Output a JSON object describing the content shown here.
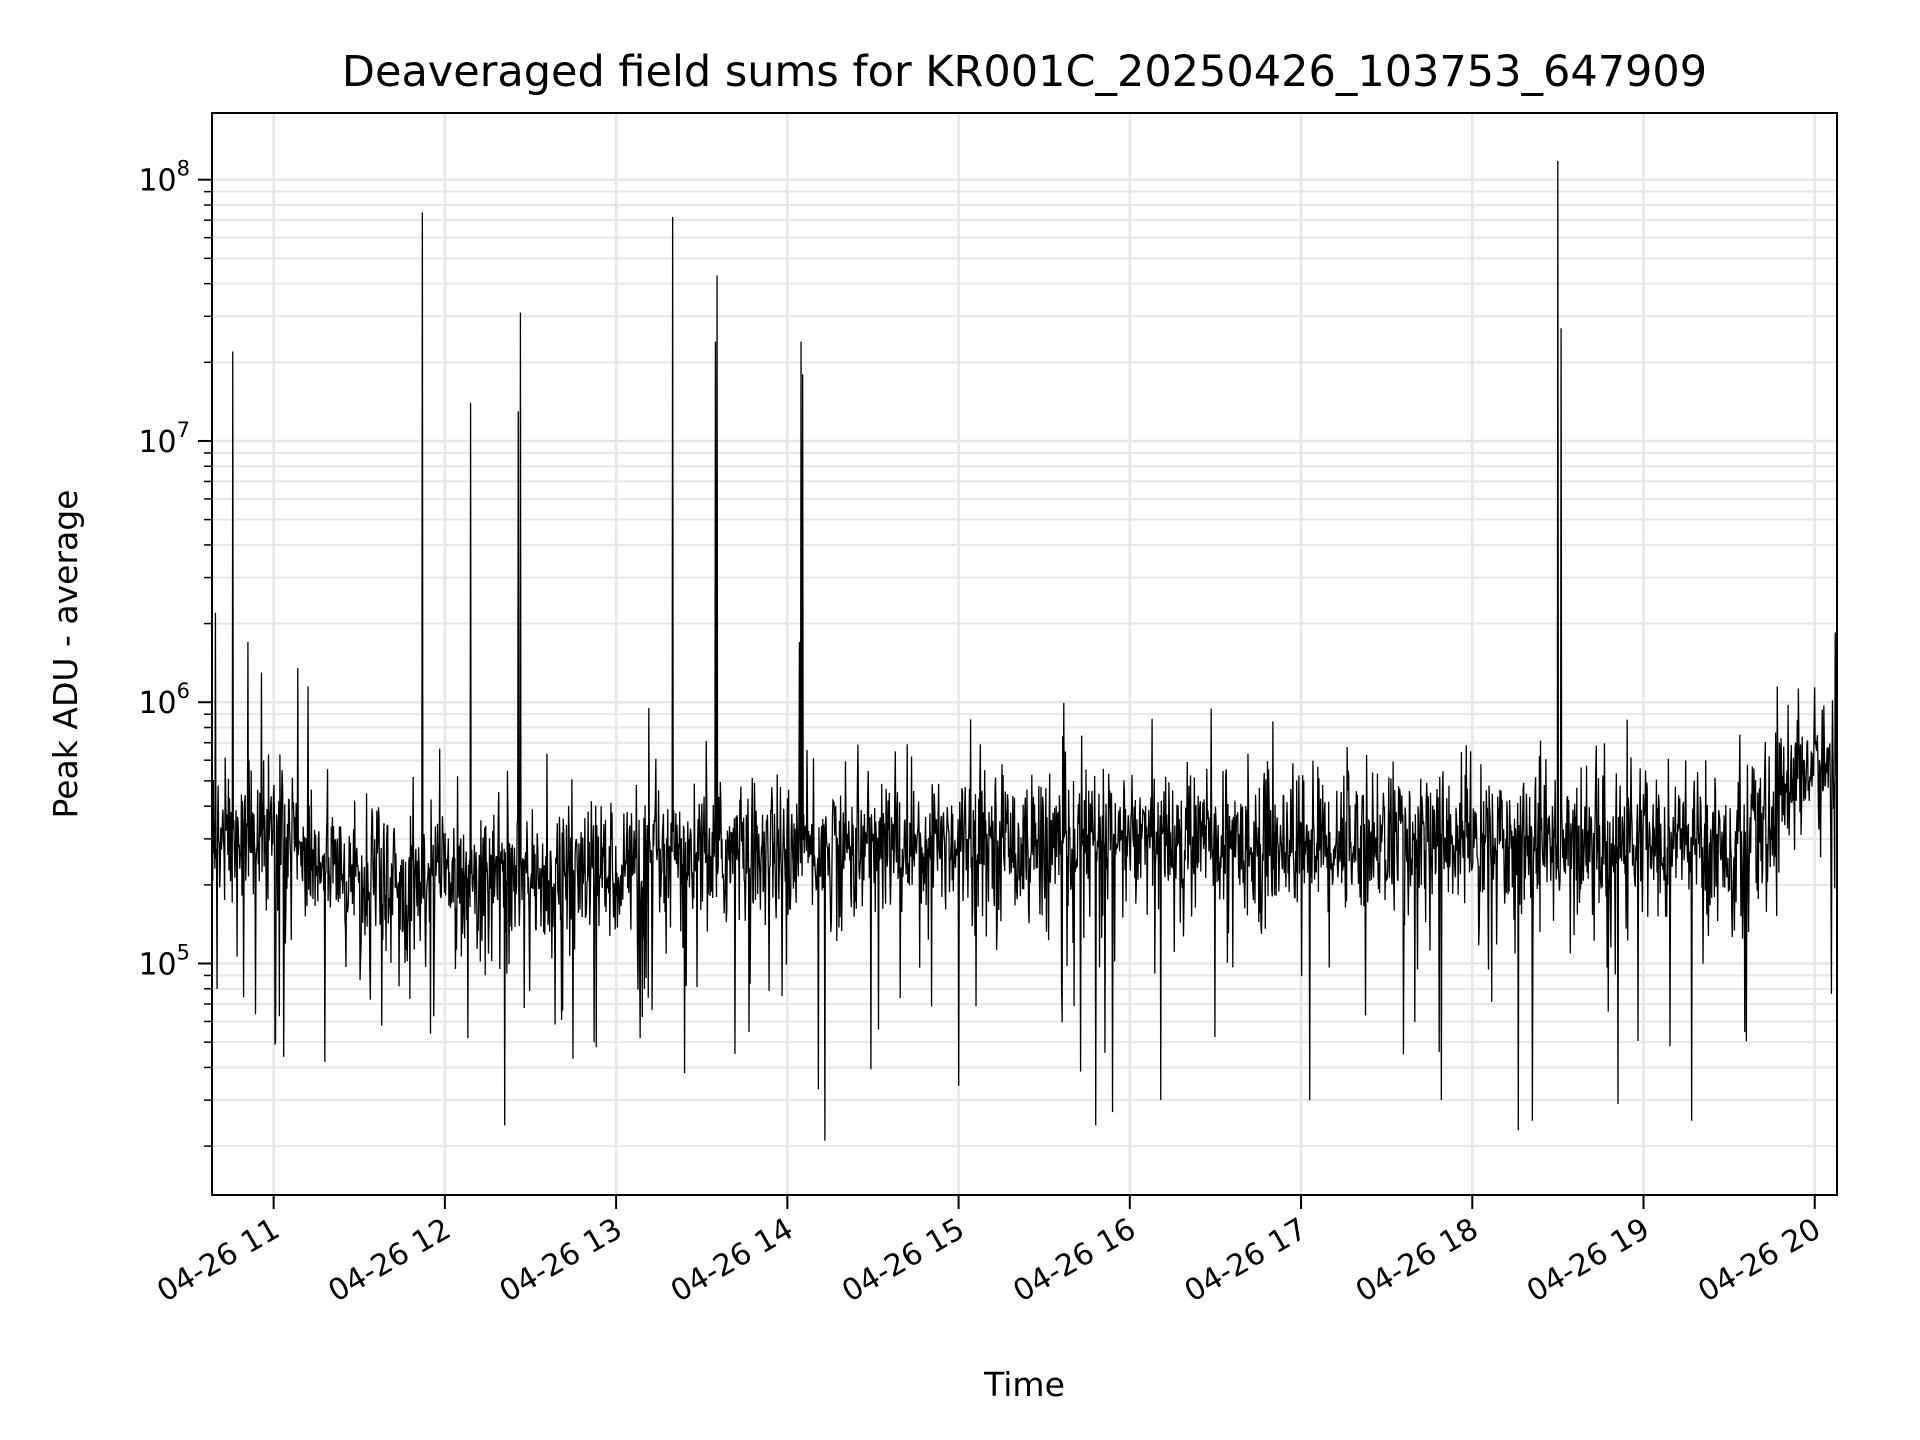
{
  "chart_data": {
    "type": "line",
    "title": "Deaveraged field sums for KR001C_20250426_103753_647909",
    "xlabel": "Time",
    "ylabel": "Peak ADU - average",
    "yscale": "log",
    "ylim": [
      13000,
      180000000
    ],
    "xlim_hours": [
      10.64,
      20.13
    ],
    "grid": true,
    "line_color": "#000000",
    "grid_color": "#e6e6e6",
    "x_ticks": [
      {
        "hour": 11,
        "label": "04-26 11"
      },
      {
        "hour": 12,
        "label": "04-26 12"
      },
      {
        "hour": 13,
        "label": "04-26 13"
      },
      {
        "hour": 14,
        "label": "04-26 14"
      },
      {
        "hour": 15,
        "label": "04-26 15"
      },
      {
        "hour": 16,
        "label": "04-26 16"
      },
      {
        "hour": 17,
        "label": "04-26 17"
      },
      {
        "hour": 18,
        "label": "04-26 18"
      },
      {
        "hour": 19,
        "label": "04-26 19"
      },
      {
        "hour": 20,
        "label": "04-26 20"
      }
    ],
    "y_ticks": [
      {
        "value": 100000,
        "base": "10",
        "exp": "5"
      },
      {
        "value": 1000000,
        "base": "10",
        "exp": "6"
      },
      {
        "value": 10000000,
        "base": "10",
        "exp": "7"
      },
      {
        "value": 100000000,
        "base": "10",
        "exp": "8"
      }
    ],
    "baseline": [
      [
        10.64,
        300000
      ],
      [
        11.0,
        320000
      ],
      [
        11.5,
        200000
      ],
      [
        12.0,
        230000
      ],
      [
        12.5,
        210000
      ],
      [
        13.0,
        230000
      ],
      [
        13.5,
        260000
      ],
      [
        14.0,
        270000
      ],
      [
        14.5,
        280000
      ],
      [
        15.0,
        300000
      ],
      [
        15.5,
        290000
      ],
      [
        16.0,
        300000
      ],
      [
        16.5,
        300000
      ],
      [
        17.0,
        290000
      ],
      [
        17.5,
        300000
      ],
      [
        18.0,
        300000
      ],
      [
        18.5,
        290000
      ],
      [
        19.0,
        300000
      ],
      [
        19.5,
        280000
      ],
      [
        19.75,
        320000
      ],
      [
        19.85,
        550000
      ],
      [
        20.13,
        560000
      ]
    ],
    "spikes": [
      {
        "hour": 10.66,
        "value": 2200000
      },
      {
        "hour": 10.76,
        "value": 22000000
      },
      {
        "hour": 10.85,
        "value": 1700000
      },
      {
        "hour": 10.93,
        "value": 1300000
      },
      {
        "hour": 11.14,
        "value": 1350000
      },
      {
        "hour": 11.2,
        "value": 1150000
      },
      {
        "hour": 11.87,
        "value": 75000000
      },
      {
        "hour": 12.15,
        "value": 14000000
      },
      {
        "hour": 12.43,
        "value": 13000000
      },
      {
        "hour": 12.44,
        "value": 31000000
      },
      {
        "hour": 13.19,
        "value": 950000
      },
      {
        "hour": 13.33,
        "value": 72000000
      },
      {
        "hour": 13.58,
        "value": 24000000
      },
      {
        "hour": 13.59,
        "value": 43000000
      },
      {
        "hour": 14.07,
        "value": 1700000
      },
      {
        "hour": 14.08,
        "value": 24000000
      },
      {
        "hour": 14.09,
        "value": 18000000
      },
      {
        "hour": 15.07,
        "value": 860000
      },
      {
        "hour": 18.5,
        "value": 118000000
      },
      {
        "hour": 18.52,
        "value": 27000000
      },
      {
        "hour": 19.78,
        "value": 1150000
      },
      {
        "hour": 20.12,
        "value": 1850000
      }
    ],
    "dips": [
      {
        "hour": 10.67,
        "value": 80000
      },
      {
        "hour": 11.3,
        "value": 42000
      },
      {
        "hour": 12.35,
        "value": 24000
      },
      {
        "hour": 12.87,
        "value": 50000
      },
      {
        "hour": 13.4,
        "value": 38000
      },
      {
        "hour": 14.18,
        "value": 33000
      },
      {
        "hour": 14.22,
        "value": 21000
      },
      {
        "hour": 15.0,
        "value": 34000
      },
      {
        "hour": 15.8,
        "value": 24000
      },
      {
        "hour": 15.9,
        "value": 27000
      },
      {
        "hour": 16.18,
        "value": 30000
      },
      {
        "hour": 17.05,
        "value": 30000
      },
      {
        "hour": 17.82,
        "value": 30000
      },
      {
        "hour": 18.27,
        "value": 23000
      },
      {
        "hour": 18.35,
        "value": 25000
      },
      {
        "hour": 18.85,
        "value": 29000
      },
      {
        "hour": 19.28,
        "value": 25000
      }
    ]
  }
}
